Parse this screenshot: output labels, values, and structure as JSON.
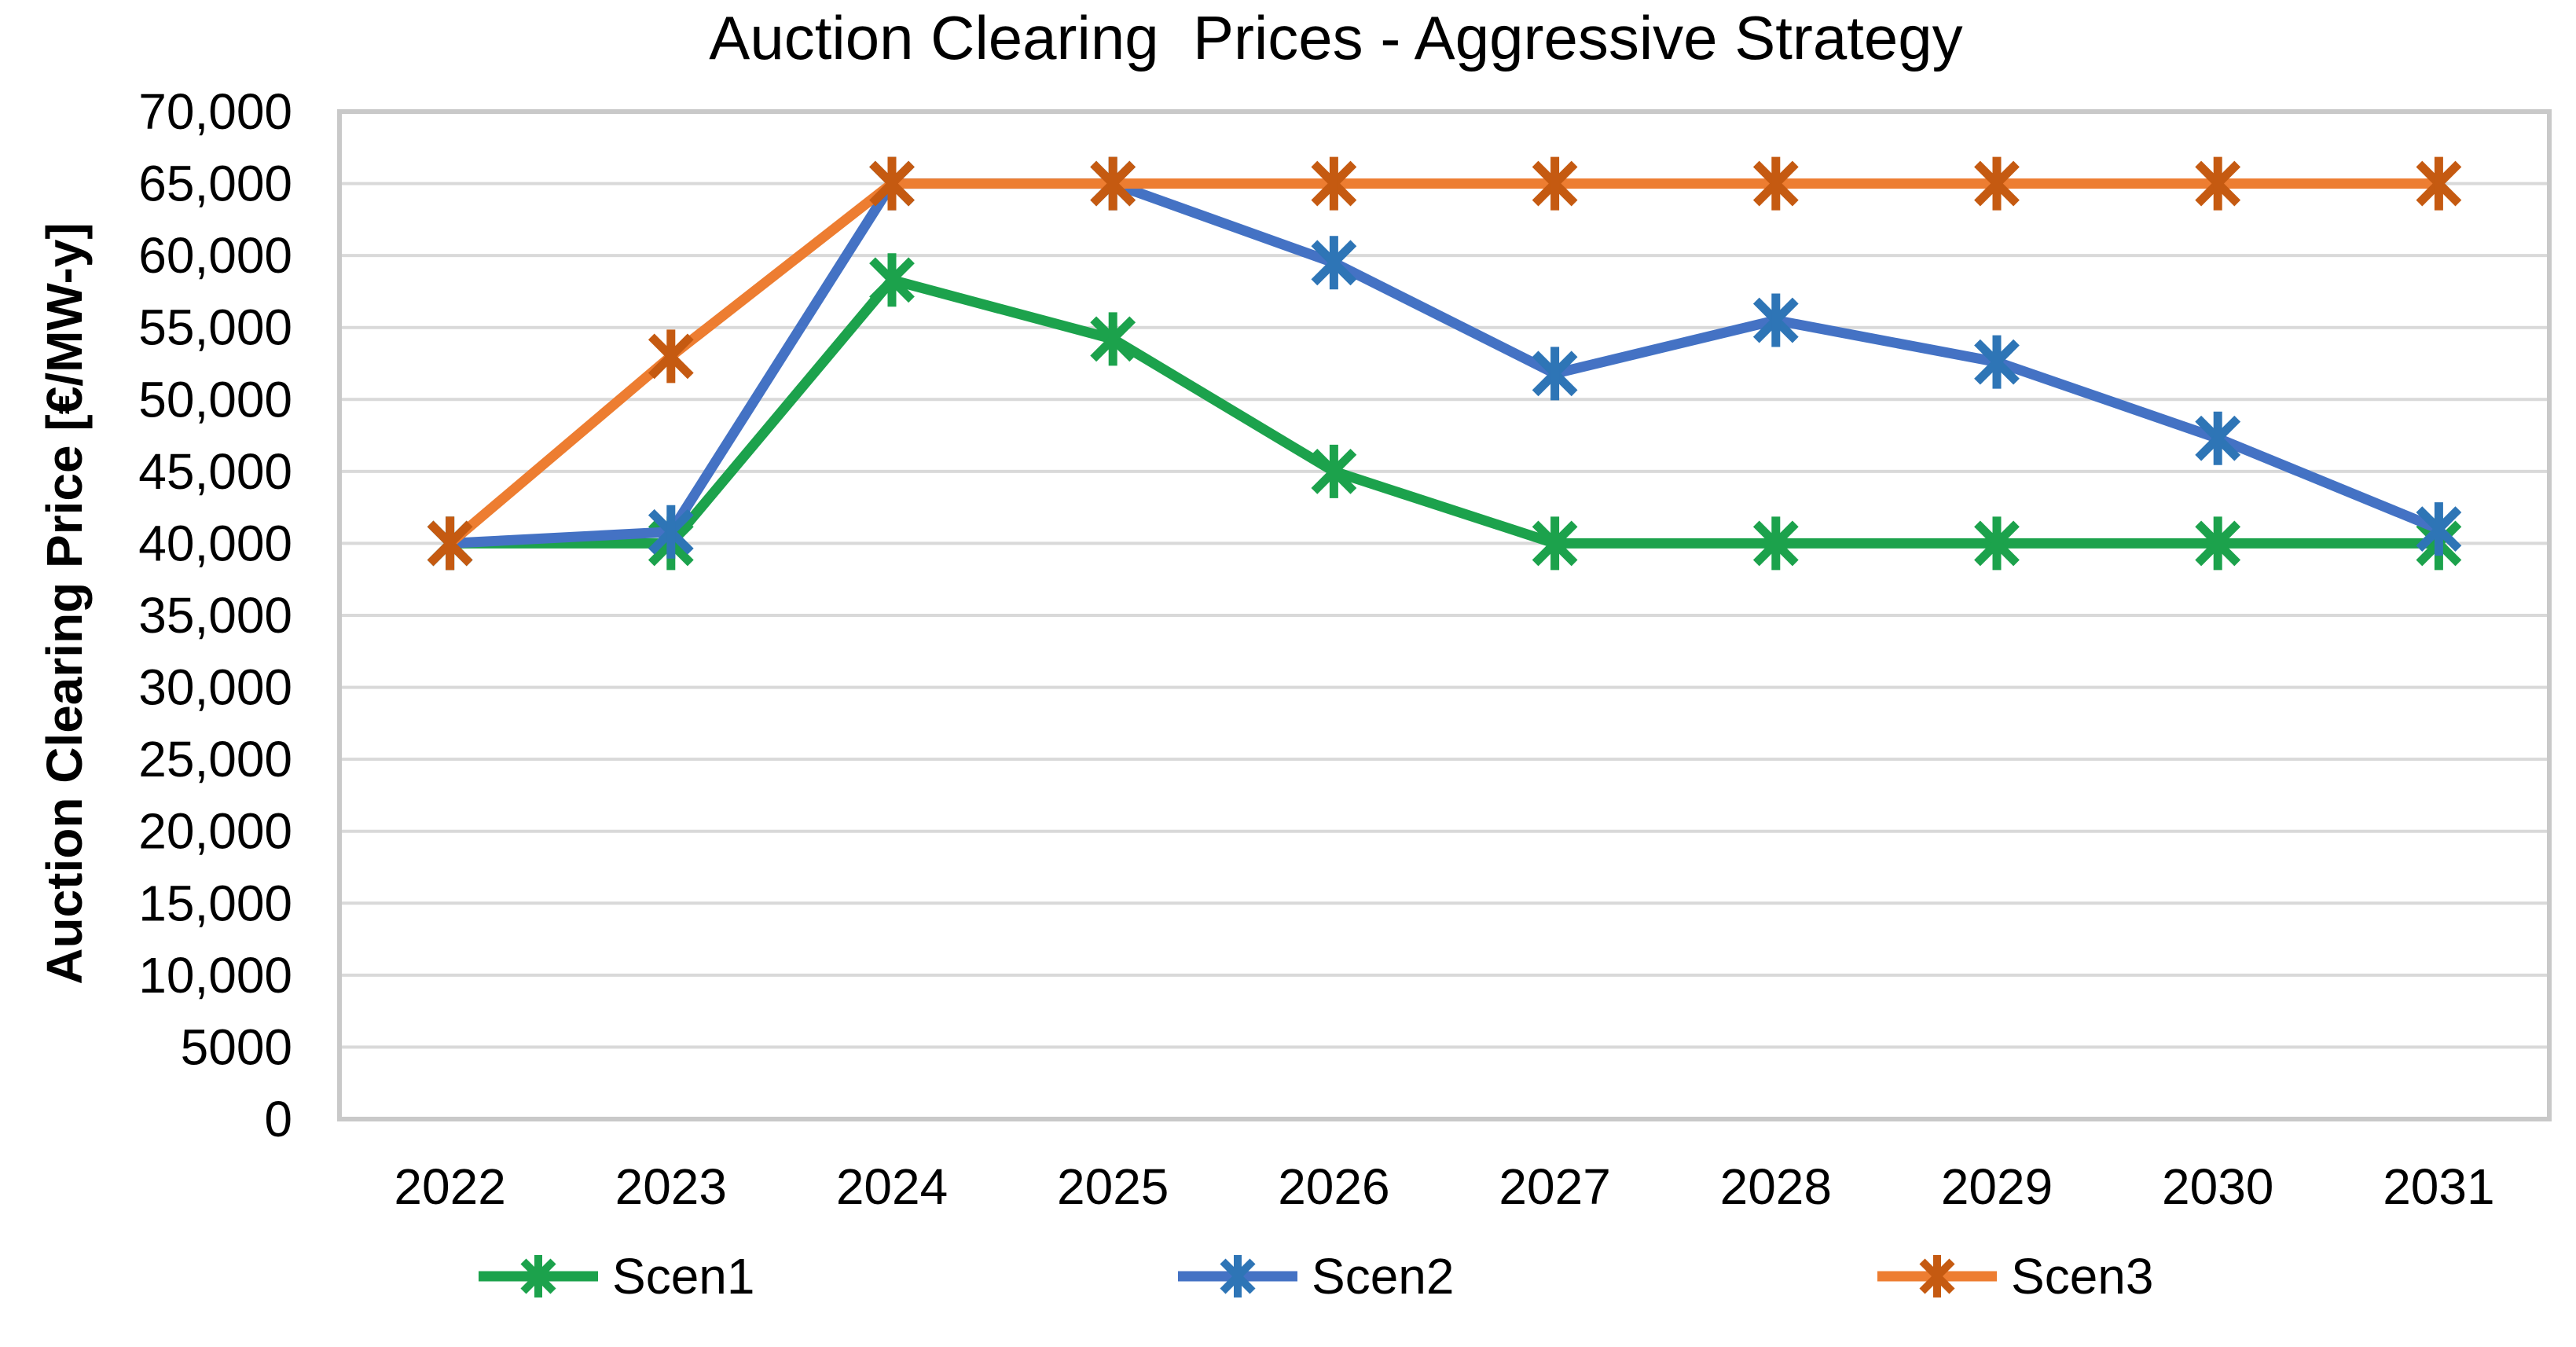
{
  "chart_data": {
    "type": "line",
    "title": "Auction Clearing  Prices - Aggressive Strategy",
    "ylabel": "Auction Clearing Price [€/MW-y]",
    "xlabel": "",
    "categories": [
      "2022",
      "2023",
      "2024",
      "2025",
      "2026",
      "2027",
      "2028",
      "2029",
      "2030",
      "2031"
    ],
    "series": [
      {
        "name": "Scen1",
        "color": "#1CA24C",
        "marker_color": "#1CA24C",
        "values": [
          40000,
          40000,
          58300,
          54200,
          45000,
          40000,
          40000,
          40000,
          40000,
          40000
        ]
      },
      {
        "name": "Scen2",
        "color": "#4472C4",
        "marker_color": "#2E75B6",
        "values": [
          40000,
          40800,
          65000,
          65000,
          59500,
          51800,
          55500,
          52600,
          47300,
          41000
        ]
      },
      {
        "name": "Scen3",
        "color": "#ED7D31",
        "marker_color": "#C55A11",
        "values": [
          40000,
          53000,
          65000,
          65000,
          65000,
          65000,
          65000,
          65000,
          65000,
          65000
        ]
      }
    ],
    "ylim": [
      0,
      70000
    ],
    "ytick_step": 5000,
    "ytick_labels": [
      "0",
      "5000",
      "10,000",
      "15,000",
      "20,000",
      "25,000",
      "30,000",
      "35,000",
      "40,000",
      "45,000",
      "50,000",
      "55,000",
      "60,000",
      "65,000",
      "70,000"
    ],
    "grid": true,
    "legend_position": "bottom",
    "marker_style": "asterisk",
    "gridline_color": "#D9D9D9",
    "border_color": "#C9C9C9",
    "text_color": "#000000"
  }
}
